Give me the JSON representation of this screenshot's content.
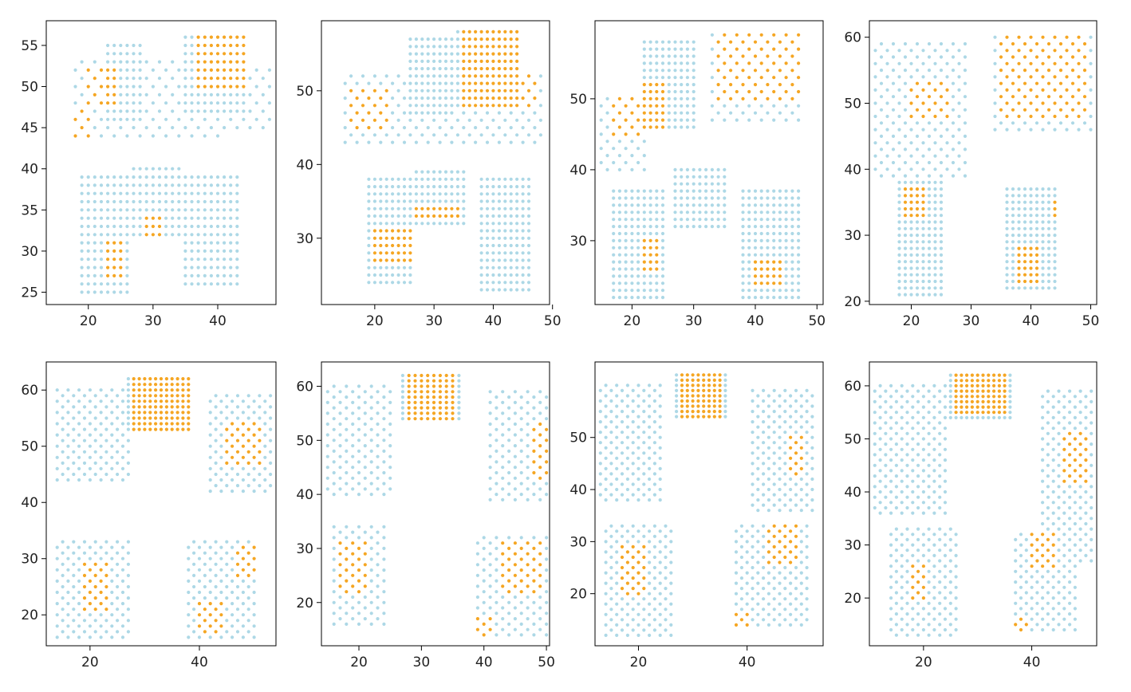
{
  "colors": {
    "background": "#add8e6",
    "highlight": "#f5a623",
    "axis": "#000000"
  },
  "chart_data": [
    {
      "type": "scatter",
      "xlim": [
        13.5,
        49
      ],
      "ylim": [
        23.5,
        58
      ],
      "xticks": [
        "20",
        "30",
        "40"
      ],
      "yticks": [
        "25",
        "30",
        "35",
        "40",
        "45",
        "50",
        "55"
      ],
      "regions": [
        {
          "x": [
            23,
            28
          ],
          "y": [
            46,
            55
          ],
          "step": 1,
          "s": 0,
          "from": 0
        },
        {
          "x": [
            35,
            44
          ],
          "y": [
            47,
            56
          ],
          "step": 1,
          "s": 0,
          "from": 0
        },
        {
          "x": [
            18,
            40
          ],
          "y": [
            44,
            53
          ],
          "step": 1,
          "s": 1,
          "from": 0
        },
        {
          "x": [
            40,
            48
          ],
          "y": [
            45,
            52
          ],
          "step": 1,
          "s": 1,
          "from": 40
        },
        {
          "x": [
            19,
            26
          ],
          "y": [
            25,
            39
          ],
          "step": 1,
          "s": 0,
          "from": 0
        },
        {
          "x": [
            27,
            34
          ],
          "y": [
            32,
            40
          ],
          "step": 1,
          "s": 0,
          "from": 0
        },
        {
          "x": [
            35,
            43
          ],
          "y": [
            26,
            39
          ],
          "step": 1,
          "s": 0,
          "from": 0
        }
      ],
      "highlight": [
        {
          "x": [
            37,
            44
          ],
          "y": [
            50,
            56
          ]
        },
        {
          "x": [
            20,
            24
          ],
          "y": [
            48,
            52
          ]
        },
        {
          "x": [
            16,
            20
          ],
          "y": [
            44,
            47
          ]
        },
        {
          "x": [
            23,
            25
          ],
          "y": [
            27,
            31
          ]
        },
        {
          "x": [
            29,
            31
          ],
          "y": [
            32,
            34
          ]
        }
      ]
    },
    {
      "type": "scatter",
      "xlim": [
        11,
        49.5
      ],
      "ylim": [
        21,
        59.5
      ],
      "xticks": [
        "20",
        "30",
        "40",
        "50"
      ],
      "yticks": [
        "30",
        "40",
        "50"
      ],
      "regions": [
        {
          "x": [
            26,
            33
          ],
          "y": [
            47,
            57
          ],
          "step": 1,
          "s": 0,
          "from": 0
        },
        {
          "x": [
            34,
            44
          ],
          "y": [
            48,
            58
          ],
          "step": 1,
          "s": 0,
          "from": 0
        },
        {
          "x": [
            15,
            48
          ],
          "y": [
            43,
            52
          ],
          "step": 1,
          "s": 1,
          "from": 0
        },
        {
          "x": [
            19,
            26
          ],
          "y": [
            24,
            38
          ],
          "step": 1,
          "s": 0,
          "from": 0
        },
        {
          "x": [
            27,
            35
          ],
          "y": [
            32,
            39
          ],
          "step": 1,
          "s": 0,
          "from": 0
        },
        {
          "x": [
            38,
            46
          ],
          "y": [
            23,
            38
          ],
          "step": 1,
          "s": 0,
          "from": 0
        }
      ],
      "highlight": [
        {
          "x": [
            35,
            47
          ],
          "y": [
            48,
            58
          ]
        },
        {
          "x": [
            16,
            22
          ],
          "y": [
            45,
            50
          ]
        },
        {
          "x": [
            20,
            26
          ],
          "y": [
            27,
            31
          ]
        },
        {
          "x": [
            27,
            34
          ],
          "y": [
            33,
            34
          ]
        }
      ]
    },
    {
      "type": "scatter",
      "xlim": [
        14,
        51
      ],
      "ylim": [
        21,
        61
      ],
      "xticks": [
        "20",
        "30",
        "40",
        "50"
      ],
      "yticks": [
        "30",
        "40",
        "50"
      ],
      "regions": [
        {
          "x": [
            22,
            30
          ],
          "y": [
            46,
            58
          ],
          "step": 1,
          "s": 0,
          "from": 0
        },
        {
          "x": [
            33,
            47
          ],
          "y": [
            47,
            59
          ],
          "step": 1,
          "s": 1,
          "from": 0
        },
        {
          "x": [
            15,
            22
          ],
          "y": [
            40,
            50
          ],
          "step": 1,
          "s": 1,
          "from": 0
        },
        {
          "x": [
            17,
            25
          ],
          "y": [
            22,
            37
          ],
          "step": 1,
          "s": 0,
          "from": 0
        },
        {
          "x": [
            27,
            35
          ],
          "y": [
            32,
            40
          ],
          "step": 1,
          "s": 0,
          "from": 0
        },
        {
          "x": [
            38,
            47
          ],
          "y": [
            22,
            37
          ],
          "step": 1,
          "s": 0,
          "from": 0
        }
      ],
      "highlight": [
        {
          "x": [
            34,
            47
          ],
          "y": [
            50,
            59
          ]
        },
        {
          "x": [
            17,
            25
          ],
          "y": [
            45,
            52
          ]
        },
        {
          "x": [
            22,
            24
          ],
          "y": [
            26,
            30
          ]
        },
        {
          "x": [
            40,
            44
          ],
          "y": [
            24,
            27
          ]
        }
      ]
    },
    {
      "type": "scatter",
      "xlim": [
        13,
        51
      ],
      "ylim": [
        19.5,
        62.5
      ],
      "xticks": [
        "20",
        "30",
        "40",
        "50"
      ],
      "yticks": [
        "20",
        "30",
        "40",
        "50",
        "60"
      ],
      "regions": [
        {
          "x": [
            14,
            29
          ],
          "y": [
            39,
            59
          ],
          "step": 1,
          "s": 1,
          "from": 0
        },
        {
          "x": [
            34,
            50
          ],
          "y": [
            46,
            60
          ],
          "step": 1,
          "s": 1,
          "from": 0
        },
        {
          "x": [
            18,
            25
          ],
          "y": [
            21,
            38
          ],
          "step": 1,
          "s": 0,
          "from": 0
        },
        {
          "x": [
            36,
            44
          ],
          "y": [
            22,
            37
          ],
          "step": 1,
          "s": 0,
          "from": 0
        }
      ],
      "highlight": [
        {
          "x": [
            35,
            49
          ],
          "y": [
            48,
            60
          ]
        },
        {
          "x": [
            20,
            26
          ],
          "y": [
            48,
            53
          ]
        },
        {
          "x": [
            19,
            22
          ],
          "y": [
            33,
            37
          ]
        },
        {
          "x": [
            38,
            41
          ],
          "y": [
            23,
            28
          ]
        },
        {
          "x": [
            44,
            47
          ],
          "y": [
            33,
            35
          ]
        }
      ]
    },
    {
      "type": "scatter",
      "xlim": [
        12,
        54
      ],
      "ylim": [
        14.5,
        65
      ],
      "xticks": [
        "20",
        "40"
      ],
      "yticks": [
        "20",
        "30",
        "40",
        "50",
        "60"
      ],
      "regions": [
        {
          "x": [
            14,
            27
          ],
          "y": [
            44,
            60
          ],
          "step": 1,
          "s": 1,
          "from": 0
        },
        {
          "x": [
            27,
            38
          ],
          "y": [
            53,
            62
          ],
          "step": 1,
          "s": 0,
          "from": 0
        },
        {
          "x": [
            42,
            53
          ],
          "y": [
            42,
            59
          ],
          "step": 1,
          "s": 1,
          "from": 0
        },
        {
          "x": [
            14,
            27
          ],
          "y": [
            16,
            33
          ],
          "step": 1,
          "s": 1,
          "from": 0
        },
        {
          "x": [
            38,
            50
          ],
          "y": [
            16,
            33
          ],
          "step": 1,
          "s": 1,
          "from": 0
        }
      ],
      "highlight": [
        {
          "x": [
            28,
            38
          ],
          "y": [
            53,
            62
          ]
        },
        {
          "x": [
            45,
            51
          ],
          "y": [
            47,
            54
          ]
        },
        {
          "x": [
            19,
            23
          ],
          "y": [
            21,
            29
          ]
        },
        {
          "x": [
            40,
            44
          ],
          "y": [
            17,
            22
          ]
        },
        {
          "x": [
            47,
            50
          ],
          "y": [
            27,
            32
          ]
        }
      ]
    },
    {
      "type": "scatter",
      "xlim": [
        14,
        50.5
      ],
      "ylim": [
        12,
        64.5
      ],
      "xticks": [
        "20",
        "30",
        "40",
        "50"
      ],
      "yticks": [
        "20",
        "30",
        "40",
        "50",
        "60"
      ],
      "regions": [
        {
          "x": [
            15,
            25
          ],
          "y": [
            40,
            60
          ],
          "step": 1,
          "s": 1,
          "from": 0
        },
        {
          "x": [
            27,
            36
          ],
          "y": [
            54,
            62
          ],
          "step": 1,
          "s": 0,
          "from": 0
        },
        {
          "x": [
            41,
            50
          ],
          "y": [
            39,
            59
          ],
          "step": 1,
          "s": 1,
          "from": 0
        },
        {
          "x": [
            16,
            24
          ],
          "y": [
            16,
            34
          ],
          "step": 1,
          "s": 1,
          "from": 0
        },
        {
          "x": [
            39,
            50
          ],
          "y": [
            14,
            32
          ],
          "step": 1,
          "s": 1,
          "from": 0
        }
      ],
      "highlight": [
        {
          "x": [
            28,
            35
          ],
          "y": [
            54,
            62
          ]
        },
        {
          "x": [
            48,
            50
          ],
          "y": [
            43,
            53
          ]
        },
        {
          "x": [
            17,
            21
          ],
          "y": [
            22,
            31
          ]
        },
        {
          "x": [
            43,
            49
          ],
          "y": [
            22,
            31
          ]
        },
        {
          "x": [
            39,
            41
          ],
          "y": [
            14,
            17
          ]
        }
      ]
    },
    {
      "type": "scatter",
      "xlim": [
        12,
        54
      ],
      "ylim": [
        10,
        64.5
      ],
      "xticks": [
        "20",
        "40"
      ],
      "yticks": [
        "20",
        "30",
        "40",
        "50"
      ],
      "regions": [
        {
          "x": [
            13,
            24
          ],
          "y": [
            38,
            60
          ],
          "step": 1,
          "s": 1,
          "from": 0
        },
        {
          "x": [
            27,
            36
          ],
          "y": [
            54,
            62
          ],
          "step": 1,
          "s": 0,
          "from": 0
        },
        {
          "x": [
            41,
            52
          ],
          "y": [
            36,
            59
          ],
          "step": 1,
          "s": 1,
          "from": 0
        },
        {
          "x": [
            14,
            26
          ],
          "y": [
            12,
            33
          ],
          "step": 1,
          "s": 1,
          "from": 0
        },
        {
          "x": [
            38,
            51
          ],
          "y": [
            14,
            33
          ],
          "step": 1,
          "s": 1,
          "from": 0
        }
      ],
      "highlight": [
        {
          "x": [
            28,
            35
          ],
          "y": [
            54,
            62
          ]
        },
        {
          "x": [
            48,
            50
          ],
          "y": [
            43,
            50
          ]
        },
        {
          "x": [
            17,
            21
          ],
          "y": [
            20,
            29
          ]
        },
        {
          "x": [
            44,
            49
          ],
          "y": [
            26,
            33
          ]
        },
        {
          "x": [
            38,
            40
          ],
          "y": [
            14,
            16
          ]
        }
      ]
    },
    {
      "type": "scatter",
      "xlim": [
        10,
        52
      ],
      "ylim": [
        11,
        64.5
      ],
      "xticks": [
        "20",
        "40"
      ],
      "yticks": [
        "20",
        "30",
        "40",
        "50",
        "60"
      ],
      "regions": [
        {
          "x": [
            11,
            24
          ],
          "y": [
            36,
            60
          ],
          "step": 1,
          "s": 1,
          "from": 0
        },
        {
          "x": [
            25,
            36
          ],
          "y": [
            54,
            62
          ],
          "step": 1,
          "s": 0,
          "from": 0
        },
        {
          "x": [
            42,
            51
          ],
          "y": [
            27,
            59
          ],
          "step": 1,
          "s": 1,
          "from": 0
        },
        {
          "x": [
            14,
            26
          ],
          "y": [
            13,
            33
          ],
          "step": 1,
          "s": 1,
          "from": 0
        },
        {
          "x": [
            37,
            48
          ],
          "y": [
            14,
            32
          ],
          "step": 1,
          "s": 1,
          "from": 0
        }
      ],
      "highlight": [
        {
          "x": [
            26,
            35
          ],
          "y": [
            55,
            62
          ]
        },
        {
          "x": [
            46,
            50
          ],
          "y": [
            42,
            51
          ]
        },
        {
          "x": [
            18,
            20
          ],
          "y": [
            20,
            26
          ]
        },
        {
          "x": [
            40,
            44
          ],
          "y": [
            26,
            32
          ]
        },
        {
          "x": [
            37,
            39
          ],
          "y": [
            14,
            16
          ]
        }
      ]
    }
  ]
}
